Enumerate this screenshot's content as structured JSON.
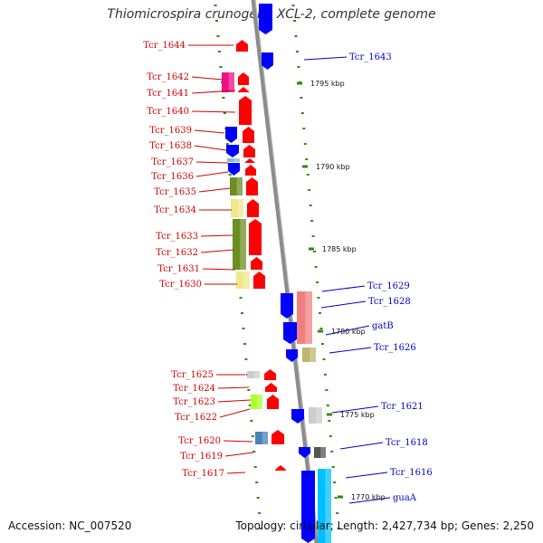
{
  "title": "Thiomicrospira crunogena XCL-2, complete genome",
  "footer": {
    "accession_label": "Accession:",
    "accession_value": "NC_007520",
    "topology_label": "Topology:",
    "topology_value": "circular",
    "length_label": "Length:",
    "length_value": "2,427,734 bp",
    "genes_label": "Genes:",
    "genes_value": "2,250"
  },
  "colors": {
    "backbone": "#8c8c8c",
    "tick": "#2e8b00",
    "left_label": "#d40000",
    "right_label": "#0000cc",
    "red_gene": "#ff0000",
    "blue_gene": "#0000ff"
  },
  "scale_labels": [
    "1795 kbp",
    "1790 kbp",
    "1785 kbp",
    "1780 kbp",
    "1775 kbp",
    "1770 kbp"
  ],
  "left_labels": [
    "Tcr_1644",
    "Tcr_1642",
    "Tcr_1641",
    "Tcr_1640",
    "Tcr_1639",
    "Tcr_1638",
    "Tcr_1637",
    "Tcr_1636",
    "Tcr_1635",
    "Tcr_1634",
    "Tcr_1633",
    "Tcr_1632",
    "Tcr_1631",
    "Tcr_1630",
    "Tcr_1625",
    "Tcr_1624",
    "Tcr_1623",
    "Tcr_1622",
    "Tcr_1620",
    "Tcr_1619",
    "Tcr_1617"
  ],
  "right_labels": [
    "Tcr_1643",
    "Tcr_1629",
    "Tcr_1628",
    "gatB",
    "Tcr_1626",
    "Tcr_1621",
    "Tcr_1618",
    "Tcr_1616",
    "guaA"
  ]
}
